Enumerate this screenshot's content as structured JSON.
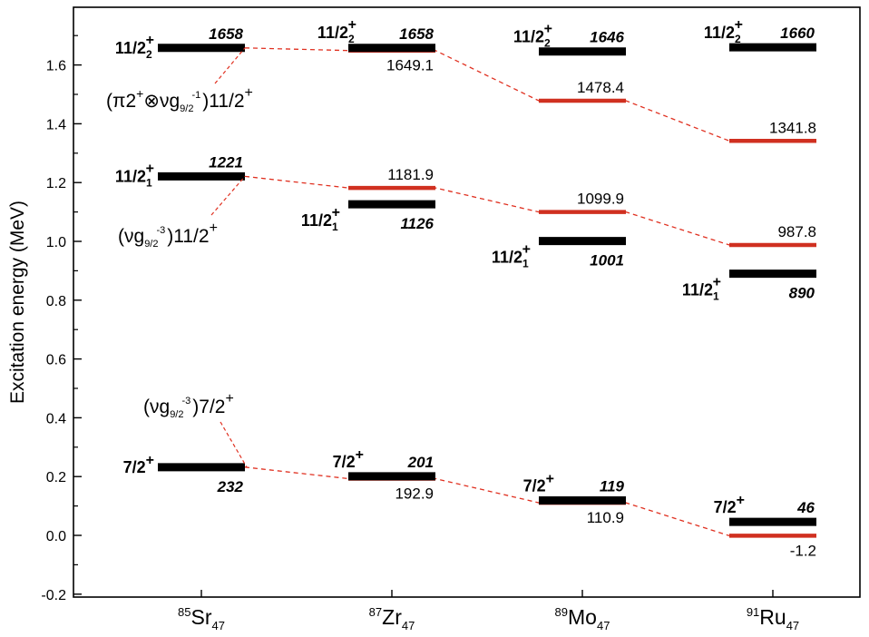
{
  "chart_data": {
    "type": "level-scheme",
    "ylabel": "Excitation energy (MeV)",
    "ylim": [
      -0.2,
      1.8
    ],
    "yticks": [
      "-0.2",
      "0.0",
      "0.2",
      "0.4",
      "0.6",
      "0.8",
      "1.0",
      "1.2",
      "1.4",
      "1.6"
    ],
    "ytick_values": [
      -0.2,
      0.0,
      0.2,
      0.4,
      0.6,
      0.8,
      1.0,
      1.2,
      1.4,
      1.6
    ],
    "colors": {
      "experiment": "#000000",
      "calculation": "#d03020",
      "tie": "#e03020"
    },
    "nuclei": [
      {
        "mass": "85",
        "element": "Sr",
        "neutrons": "47"
      },
      {
        "mass": "87",
        "element": "Zr",
        "neutrons": "47"
      },
      {
        "mass": "89",
        "element": "Mo",
        "neutrons": "47"
      },
      {
        "mass": "91",
        "element": "Ru",
        "neutrons": "47"
      }
    ],
    "experimental_levels": [
      {
        "nucleus": 0,
        "energy_kev": 1658,
        "label": "1658",
        "spin": "11/2",
        "index": "2",
        "parity": "+"
      },
      {
        "nucleus": 0,
        "energy_kev": 1221,
        "label": "1221",
        "spin": "11/2",
        "index": "1",
        "parity": "+"
      },
      {
        "nucleus": 0,
        "energy_kev": 232,
        "label": "232",
        "spin": "7/2",
        "index": "",
        "parity": "+"
      },
      {
        "nucleus": 1,
        "energy_kev": 1658,
        "label": "1658",
        "spin": "11/2",
        "index": "2",
        "parity": "+"
      },
      {
        "nucleus": 1,
        "energy_kev": 1126,
        "label": "1126",
        "spin": "11/2",
        "index": "1",
        "parity": "+"
      },
      {
        "nucleus": 1,
        "energy_kev": 201,
        "label": "201",
        "spin": "7/2",
        "index": "",
        "parity": "+"
      },
      {
        "nucleus": 2,
        "energy_kev": 1646,
        "label": "1646",
        "spin": "11/2",
        "index": "2",
        "parity": "+"
      },
      {
        "nucleus": 2,
        "energy_kev": 1001,
        "label": "1001",
        "spin": "11/2",
        "index": "1",
        "parity": "+"
      },
      {
        "nucleus": 2,
        "energy_kev": 119,
        "label": "119",
        "spin": "7/2",
        "index": "",
        "parity": "+"
      },
      {
        "nucleus": 3,
        "energy_kev": 1660,
        "label": "1660",
        "spin": "11/2",
        "index": "2",
        "parity": "+"
      },
      {
        "nucleus": 3,
        "energy_kev": 890,
        "label": "890",
        "spin": "11/2",
        "index": "1",
        "parity": "+"
      },
      {
        "nucleus": 3,
        "energy_kev": 46,
        "label": "46",
        "spin": "7/2",
        "index": "",
        "parity": "+"
      }
    ],
    "calculated_levels": [
      {
        "nucleus": 1,
        "energy_kev": 1649.1,
        "label": "1649.1"
      },
      {
        "nucleus": 1,
        "energy_kev": 1181.9,
        "label": "1181.9"
      },
      {
        "nucleus": 1,
        "energy_kev": 192.9,
        "label": "192.9"
      },
      {
        "nucleus": 2,
        "energy_kev": 1478.4,
        "label": "1478.4"
      },
      {
        "nucleus": 2,
        "energy_kev": 1099.9,
        "label": "1099.9"
      },
      {
        "nucleus": 2,
        "energy_kev": 110.9,
        "label": "110.9"
      },
      {
        "nucleus": 3,
        "energy_kev": 1341.8,
        "label": "1341.8"
      },
      {
        "nucleus": 3,
        "energy_kev": 987.8,
        "label": "987.8"
      },
      {
        "nucleus": 3,
        "energy_kev": -1.2,
        "label": "-1.2"
      }
    ],
    "trend_lines": [
      {
        "energies_kev": [
          1658,
          1649.1,
          1478.4,
          1341.8
        ]
      },
      {
        "energies_kev": [
          1221,
          1181.9,
          1099.9,
          987.8
        ]
      },
      {
        "energies_kev": [
          232,
          192.9,
          110.9,
          -1.2
        ]
      }
    ],
    "configurations": [
      {
        "text": "(π2+⊗νg9/2-1)11/2+",
        "pre": "(π2",
        "pre_sup": "+",
        "mid": "⊗νg",
        "sub": "9/2",
        "sub_sup": "-1",
        "post": ")11/2",
        "post_sup": "+"
      },
      {
        "text": "(νg9/2-3)11/2+",
        "pre": "(νg",
        "sub": "9/2",
        "sub_sup": "-3",
        "post": ")11/2",
        "post_sup": "+"
      },
      {
        "text": "(νg9/2-3)7/2+",
        "pre": "(νg",
        "sub": "9/2",
        "sub_sup": "-3",
        "post": ")7/2",
        "post_sup": "+"
      }
    ]
  }
}
